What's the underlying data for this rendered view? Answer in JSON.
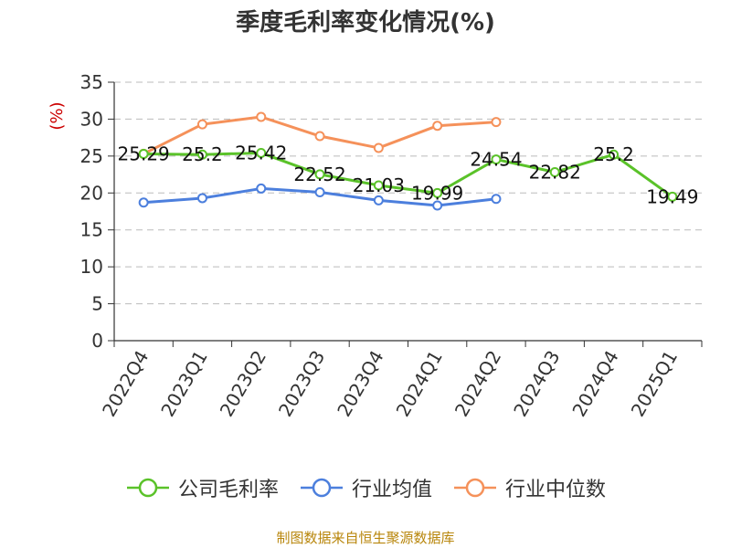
{
  "chart_data": {
    "type": "line",
    "title": "季度毛利率变化情况(%)",
    "ylabel": "(%)",
    "xlabel": "",
    "categories": [
      "2022Q4",
      "2023Q1",
      "2023Q2",
      "2023Q3",
      "2023Q4",
      "2024Q1",
      "2024Q2",
      "2024Q3",
      "2024Q4",
      "2025Q1"
    ],
    "ylim": [
      0,
      35
    ],
    "yticks": [
      0,
      5,
      10,
      15,
      20,
      25,
      30,
      35
    ],
    "grid": true,
    "legend_position": "bottom",
    "series": [
      {
        "name": "公司毛利率",
        "color": "#5ac229",
        "values": [
          25.29,
          25.2,
          25.42,
          22.52,
          21.03,
          19.99,
          24.54,
          22.82,
          25.2,
          19.49
        ],
        "labels": [
          "25.29",
          "25.2",
          "25.42",
          "22.52",
          "21.03",
          "19.99",
          "24.54",
          "22.82",
          "25.2",
          "19.49"
        ],
        "show_labels": true
      },
      {
        "name": "行业均值",
        "color": "#4c7fdd",
        "values": [
          18.7,
          19.3,
          20.6,
          20.1,
          19.0,
          18.3,
          19.2,
          null,
          null,
          null
        ],
        "show_labels": false
      },
      {
        "name": "行业中位数",
        "color": "#f5915a",
        "values": [
          25.3,
          29.3,
          30.3,
          27.7,
          26.1,
          29.1,
          29.6,
          null,
          null,
          null
        ],
        "show_labels": false
      }
    ]
  },
  "source_note": "制图数据来自恒生聚源数据库"
}
